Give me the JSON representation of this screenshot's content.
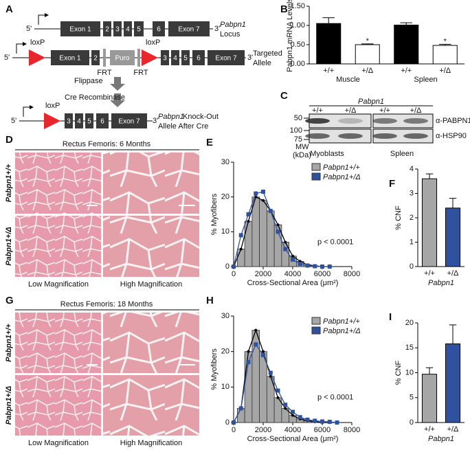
{
  "panel_labels": [
    "A",
    "B",
    "C",
    "D",
    "E",
    "F",
    "G",
    "H",
    "I"
  ],
  "diagram": {
    "locus": {
      "five": "5'",
      "exons": [
        "Exon 1",
        "2",
        "3",
        "4",
        "5",
        "6",
        "Exon 7"
      ],
      "three": "3'",
      "gene": "Pabpn1",
      "label": "Locus"
    },
    "targeted": {
      "five": "5'",
      "lox": "loxP",
      "exons_a": [
        "Exon 1",
        "2"
      ],
      "puro": "Puro",
      "exons_b": [
        "3",
        "4",
        "5",
        "6",
        "Exon 7"
      ],
      "three": "3'",
      "label": "Targeted",
      "label2": "Allele",
      "frt": "FRT"
    },
    "flippase": "Flippase",
    "cre": "Cre Recombinase",
    "knockout": {
      "five": "5'",
      "lox": "loxP",
      "exons": [
        "3",
        "4",
        "5",
        "6",
        "Exon 7"
      ],
      "three": "3'",
      "gene": "Pabpn1",
      "label": "Knock-Out",
      "label2": "Allele After Cre"
    }
  },
  "blot": {
    "gene": "Pabpn1",
    "genotypes": [
      "+/+",
      "+/Δ",
      "+/+",
      "+/Δ"
    ],
    "mw": [
      50,
      100,
      75
    ],
    "mw_unit": [
      "MW",
      "(kDa)"
    ],
    "antibodies": [
      "α-PABPN1",
      "α-HSP90"
    ],
    "samples": [
      "Myoblasts",
      "Spleen"
    ]
  },
  "histology": [
    {
      "title": "Rectus Femoris: 6 Months",
      "rows": [
        "Pabpn1+/+",
        "Pabpn1+/Δ"
      ],
      "columns": [
        "Low Magnification",
        "High Magnification"
      ]
    },
    {
      "title": "Rectus Femoris: 18 Months",
      "rows": [
        "Pabpn1+/+",
        "Pabpn1+/Δ"
      ],
      "columns": [
        "Low Magnification",
        "High Magnification"
      ]
    }
  ],
  "chart_data": [
    {
      "type": "bar",
      "y_label": "Pabpn1 mRNA Levels",
      "categories": [
        "+/+",
        "+/Δ",
        "+/+",
        "+/Δ"
      ],
      "groups": [
        "Muscle",
        "Spleen"
      ],
      "values": [
        1.05,
        0.5,
        1.01,
        0.48
      ],
      "errors": [
        0.15,
        0.02,
        0.06,
        0.03
      ],
      "colors": [
        "#000000",
        "#ffffff",
        "#000000",
        "#ffffff"
      ],
      "significance": [
        null,
        "*",
        null,
        "*"
      ],
      "ylim": [
        0,
        1.5
      ],
      "yticks": [
        {
          "value": 0,
          "label": "0.00"
        },
        {
          "value": 0.5,
          "label": "0.50"
        },
        {
          "value": 1,
          "label": "1.00"
        },
        {
          "value": 1.5,
          "label": "1.50"
        }
      ]
    },
    {
      "type": "histogram_line",
      "x_label": "Cross-Sectional Area (μm²)",
      "y_label": "% Myofibers",
      "annotation": "p < 0.0001",
      "x": [
        0,
        500,
        1000,
        1500,
        2000,
        2500,
        3000,
        3500,
        4000,
        4500,
        5000,
        5500,
        6000,
        6500
      ],
      "series": [
        {
          "name": "Pabpn1+/+",
          "color": "#a6a6a6",
          "values": [
            0,
            5,
            13,
            20,
            19,
            16,
            12,
            7,
            3,
            1.5,
            0.5,
            0.2,
            0,
            0
          ]
        },
        {
          "name": "Pabpn1+/Δ",
          "color": "#2f52a0",
          "values": [
            0,
            9,
            15,
            21,
            21.5,
            16,
            10,
            5,
            2,
            0.8,
            0.3,
            0.1,
            0,
            0
          ]
        }
      ],
      "xlim": [
        0,
        8000
      ],
      "xticks": [
        0,
        2000,
        4000,
        6000,
        8000
      ],
      "ylim": [
        0,
        30
      ],
      "yticks": [
        0,
        10,
        20,
        30
      ]
    },
    {
      "type": "bar",
      "y_label": "% CNF",
      "x_label": "Pabpn1",
      "categories": [
        "+/+",
        "+/Δ"
      ],
      "values": [
        3.6,
        2.4
      ],
      "errors": [
        0.2,
        0.4
      ],
      "colors": [
        "#a6a6a6",
        "#2f52a0"
      ],
      "ylim": [
        0,
        4
      ],
      "yticks": [
        0,
        1,
        2,
        3,
        4
      ]
    },
    {
      "type": "histogram_line",
      "x_label": "Cross-Sectional Area (μm²)",
      "y_label": "% Myofibers",
      "annotation": "p < 0.0001",
      "x": [
        0,
        500,
        1000,
        1500,
        2000,
        2500,
        3000,
        3500,
        4000,
        4500,
        5000,
        5500,
        6000,
        6500,
        7000
      ],
      "series": [
        {
          "name": "Pabpn1+/+",
          "color": "#a6a6a6",
          "values": [
            0,
            4,
            20,
            26,
            20,
            13,
            7,
            4,
            2,
            1,
            0.5,
            0.2,
            0,
            0,
            0
          ]
        },
        {
          "name": "Pabpn1+/Δ",
          "color": "#2f52a0",
          "values": [
            0,
            4,
            17,
            22,
            19,
            14,
            9,
            5,
            3,
            1.5,
            0.8,
            0.5,
            0.3,
            0.2,
            0
          ]
        }
      ],
      "xlim": [
        0,
        8000
      ],
      "xticks": [
        0,
        2000,
        4000,
        6000,
        8000
      ],
      "ylim": [
        0,
        30
      ],
      "yticks": [
        0,
        10,
        20,
        30
      ]
    },
    {
      "type": "bar",
      "y_label": "% CNF",
      "x_label": "Pabpn1",
      "categories": [
        "+/+",
        "+/Δ"
      ],
      "values": [
        9.7,
        15.8
      ],
      "errors": [
        1.3,
        3.8
      ],
      "colors": [
        "#a6a6a6",
        "#2f52a0"
      ],
      "ylim": [
        0,
        20
      ],
      "yticks": [
        0,
        5,
        10,
        15,
        20
      ]
    }
  ]
}
